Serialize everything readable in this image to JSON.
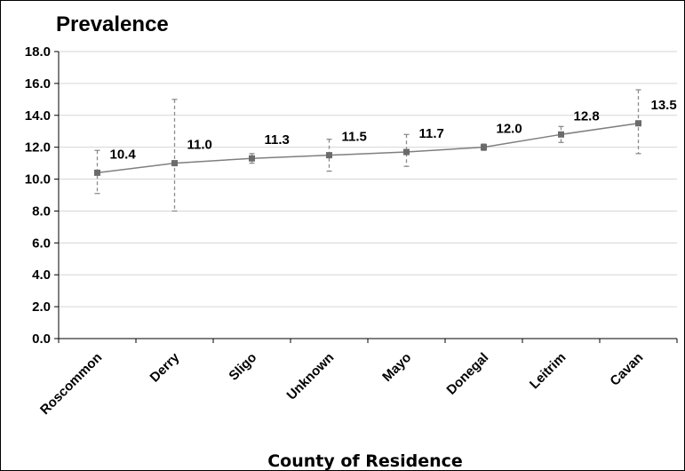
{
  "chart_data": {
    "type": "line",
    "title": "Prevalence",
    "xlabel": "County of Residence",
    "ylabel": "",
    "ylim": [
      0,
      18
    ],
    "yticks": [
      "0.0",
      "2.0",
      "4.0",
      "6.0",
      "8.0",
      "10.0",
      "12.0",
      "14.0",
      "16.0",
      "18.0"
    ],
    "grid": true,
    "categories": [
      "Roscommon",
      "Derry",
      "Sligo",
      "Unknown",
      "Mayo",
      "Donegal",
      "Leitrim",
      "Cavan"
    ],
    "values": [
      10.4,
      11.0,
      11.3,
      11.5,
      11.7,
      12.0,
      12.8,
      13.5
    ],
    "labels": [
      "10.4",
      "11.0",
      "11.3",
      "11.5",
      "11.7",
      "12.0",
      "12.8",
      "13.5"
    ],
    "error_low": [
      9.1,
      8.0,
      11.0,
      10.5,
      10.8,
      11.8,
      12.3,
      11.6
    ],
    "error_high": [
      11.8,
      15.0,
      11.6,
      12.5,
      12.8,
      12.2,
      13.3,
      15.6
    ],
    "colors": {
      "series": "#7f7f7f",
      "marker": "#6b6b6b",
      "error": "#8c8c8c"
    }
  }
}
